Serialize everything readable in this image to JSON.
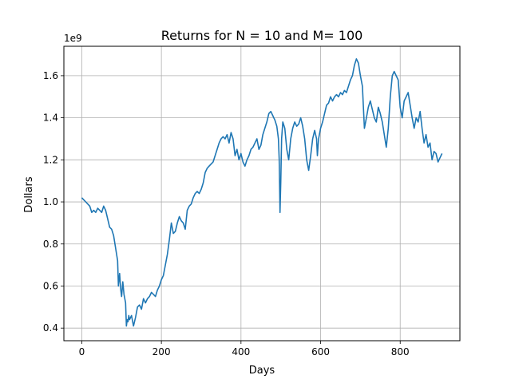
{
  "chart_data": {
    "type": "line",
    "title": "Returns for N = 10 and M= 100",
    "xlabel": "Days",
    "ylabel": "Dollars",
    "y_offset_label": "1e9",
    "xlim": [
      -45,
      950
    ],
    "ylim": [
      0.34,
      1.74
    ],
    "xticks": [
      0,
      200,
      400,
      600,
      800
    ],
    "yticks": [
      0.4,
      0.6,
      0.8,
      1.0,
      1.2,
      1.4,
      1.6
    ],
    "xtick_labels": [
      "0",
      "200",
      "400",
      "600",
      "800"
    ],
    "ytick_labels": [
      "0.4",
      "0.6",
      "0.8",
      "1.0",
      "1.2",
      "1.4",
      "1.6"
    ],
    "grid": true,
    "series": [
      {
        "color": "#1f77b4",
        "x": [
          0,
          5,
          10,
          15,
          20,
          25,
          30,
          35,
          40,
          45,
          50,
          55,
          60,
          65,
          70,
          75,
          80,
          85,
          90,
          92,
          95,
          98,
          100,
          103,
          106,
          110,
          112,
          114,
          116,
          118,
          120,
          125,
          130,
          135,
          140,
          145,
          150,
          155,
          160,
          165,
          170,
          175,
          180,
          185,
          190,
          195,
          200,
          205,
          210,
          215,
          220,
          225,
          230,
          235,
          240,
          245,
          250,
          255,
          260,
          265,
          270,
          275,
          280,
          285,
          290,
          295,
          300,
          305,
          310,
          315,
          320,
          325,
          330,
          335,
          340,
          345,
          350,
          355,
          360,
          365,
          370,
          375,
          380,
          385,
          390,
          395,
          400,
          405,
          410,
          415,
          420,
          425,
          430,
          435,
          440,
          445,
          450,
          455,
          460,
          465,
          470,
          475,
          480,
          485,
          490,
          494,
          496,
          498,
          500,
          502,
          505,
          510,
          515,
          520,
          525,
          530,
          535,
          540,
          545,
          550,
          555,
          560,
          565,
          570,
          575,
          580,
          585,
          590,
          592,
          595,
          600,
          605,
          610,
          615,
          620,
          625,
          630,
          635,
          640,
          645,
          650,
          655,
          660,
          665,
          670,
          675,
          680,
          685,
          690,
          695,
          700,
          705,
          710,
          715,
          720,
          725,
          730,
          735,
          740,
          745,
          750,
          755,
          760,
          765,
          770,
          775,
          780,
          785,
          790,
          795,
          800,
          805,
          810,
          815,
          820,
          825,
          830,
          835,
          840,
          845,
          850,
          855,
          860,
          865,
          870,
          875,
          880,
          885,
          890,
          895,
          900,
          905
        ],
        "y": [
          1.02,
          1.01,
          1.0,
          0.99,
          0.98,
          0.95,
          0.96,
          0.95,
          0.97,
          0.96,
          0.95,
          0.98,
          0.96,
          0.92,
          0.88,
          0.87,
          0.84,
          0.78,
          0.72,
          0.6,
          0.66,
          0.58,
          0.55,
          0.62,
          0.56,
          0.52,
          0.41,
          0.44,
          0.43,
          0.46,
          0.44,
          0.46,
          0.41,
          0.45,
          0.5,
          0.51,
          0.49,
          0.54,
          0.52,
          0.54,
          0.55,
          0.57,
          0.56,
          0.55,
          0.58,
          0.6,
          0.63,
          0.65,
          0.7,
          0.75,
          0.82,
          0.9,
          0.85,
          0.86,
          0.9,
          0.93,
          0.91,
          0.9,
          0.87,
          0.96,
          0.98,
          0.99,
          1.02,
          1.04,
          1.05,
          1.04,
          1.06,
          1.09,
          1.14,
          1.16,
          1.17,
          1.18,
          1.19,
          1.22,
          1.25,
          1.28,
          1.3,
          1.31,
          1.3,
          1.32,
          1.28,
          1.33,
          1.3,
          1.22,
          1.25,
          1.2,
          1.23,
          1.19,
          1.17,
          1.2,
          1.22,
          1.25,
          1.26,
          1.28,
          1.3,
          1.25,
          1.27,
          1.32,
          1.35,
          1.38,
          1.42,
          1.43,
          1.41,
          1.39,
          1.36,
          1.3,
          1.2,
          0.95,
          1.1,
          1.3,
          1.38,
          1.35,
          1.25,
          1.2,
          1.3,
          1.35,
          1.38,
          1.36,
          1.37,
          1.4,
          1.36,
          1.3,
          1.2,
          1.15,
          1.22,
          1.3,
          1.34,
          1.3,
          1.22,
          1.3,
          1.35,
          1.38,
          1.42,
          1.46,
          1.47,
          1.5,
          1.48,
          1.5,
          1.51,
          1.5,
          1.52,
          1.51,
          1.53,
          1.52,
          1.55,
          1.58,
          1.6,
          1.65,
          1.68,
          1.66,
          1.6,
          1.55,
          1.35,
          1.4,
          1.45,
          1.48,
          1.44,
          1.4,
          1.38,
          1.45,
          1.42,
          1.38,
          1.32,
          1.26,
          1.35,
          1.5,
          1.6,
          1.62,
          1.6,
          1.58,
          1.45,
          1.4,
          1.48,
          1.5,
          1.52,
          1.46,
          1.4,
          1.35,
          1.4,
          1.38,
          1.43,
          1.35,
          1.28,
          1.32,
          1.26,
          1.28,
          1.2,
          1.24,
          1.23,
          1.19,
          1.21,
          1.23
        ]
      }
    ]
  }
}
